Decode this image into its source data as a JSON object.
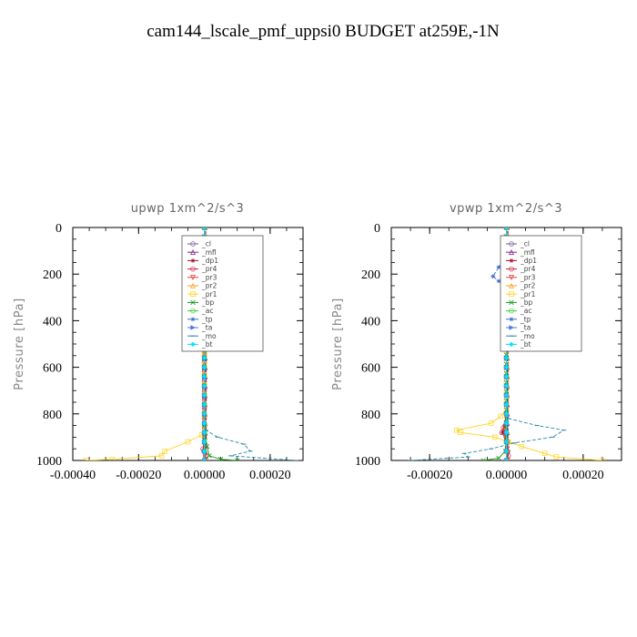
{
  "title": "cam144_lscale_pmf_uppsi0  BUDGET at259E,-1N",
  "chart_data": [
    {
      "type": "line",
      "subtitle": "upwp   1xm^2/s^3",
      "ylabel": "Pressure [hPa]",
      "xlim": [
        -0.0004,
        0.0003
      ],
      "ylim": [
        1000,
        0
      ],
      "x_ticks": [
        -0.0004,
        -0.0002,
        0.0,
        0.0002
      ],
      "x_tick_labels": [
        "-0.00040",
        "-0.00020",
        "0.00000",
        "0.00020"
      ],
      "y_ticks": [
        0,
        200,
        400,
        600,
        800,
        1000
      ],
      "y_tick_labels": [
        "0",
        "200",
        "400",
        "600",
        "800",
        "1000"
      ],
      "legend_position": "top-right",
      "series": [
        {
          "name": "_cl",
          "color": "#7a5c9e",
          "marker": "circle",
          "points": [
            [
              0,
              0
            ],
            [
              0,
              200
            ],
            [
              0,
              400
            ],
            [
              0,
              600
            ],
            [
              0,
              800
            ],
            [
              0,
              1000
            ]
          ]
        },
        {
          "name": "_mfl",
          "color": "#8b1a8b",
          "marker": "triangle",
          "points": [
            [
              2e-06,
              0
            ],
            [
              2e-06,
              200
            ],
            [
              2e-06,
              400
            ],
            [
              2e-06,
              600
            ],
            [
              2e-06,
              800
            ],
            [
              2e-06,
              1000
            ]
          ]
        },
        {
          "name": "_dp1",
          "color": "#a01030",
          "marker": "star",
          "points": [
            [
              0,
              0
            ],
            [
              0,
              300
            ],
            [
              0,
              600
            ],
            [
              0,
              900
            ],
            [
              -3e-06,
              960
            ],
            [
              2e-06,
              1000
            ]
          ]
        },
        {
          "name": "_pr4",
          "color": "#cc2244",
          "marker": "circle",
          "points": [
            [
              0,
              0
            ],
            [
              0,
              500
            ],
            [
              0,
              900
            ],
            [
              -4e-06,
              950
            ],
            [
              3e-06,
              980
            ],
            [
              0,
              1000
            ]
          ]
        },
        {
          "name": "_pr3",
          "color": "#e03c3c",
          "marker": "triangle-down",
          "points": [
            [
              0,
              0
            ],
            [
              0,
              500
            ],
            [
              1e-06,
              900
            ],
            [
              4e-06,
              1000
            ]
          ]
        },
        {
          "name": "_pr2",
          "color": "#ff9a1a",
          "marker": "triangle",
          "points": [
            [
              0,
              0
            ],
            [
              5e-06,
              100
            ],
            [
              1.2e-05,
              200
            ],
            [
              6e-06,
              300
            ],
            [
              0,
              500
            ],
            [
              0,
              1000
            ]
          ]
        },
        {
          "name": "_pr1",
          "color": "#ffd21a",
          "marker": "square",
          "points": [
            [
              0,
              0
            ],
            [
              8e-06,
              100
            ],
            [
              1.5e-05,
              180
            ],
            [
              2e-05,
              220
            ],
            [
              1.2e-05,
              300
            ],
            [
              8e-06,
              400
            ],
            [
              0,
              500
            ],
            [
              0,
              850
            ],
            [
              -8e-06,
              890
            ],
            [
              -5e-05,
              920
            ],
            [
              -0.00012,
              960
            ],
            [
              -0.00013,
              980
            ],
            [
              -0.00028,
              995
            ],
            [
              -0.00036,
              1000
            ]
          ]
        },
        {
          "name": "_bp",
          "color": "#1a9a1a",
          "marker": "x",
          "points": [
            [
              0,
              0
            ],
            [
              0,
              800
            ],
            [
              2e-06,
              900
            ],
            [
              1.5e-05,
              980
            ],
            [
              5e-05,
              995
            ],
            [
              0.0001,
              1000
            ]
          ]
        },
        {
          "name": "_ac",
          "color": "#33cc33",
          "marker": "circle",
          "points": [
            [
              0,
              0
            ],
            [
              0,
              1000
            ]
          ]
        },
        {
          "name": "_tp",
          "color": "#3a66cc",
          "marker": "star",
          "points": [
            [
              0,
              0
            ],
            [
              5e-06,
              100
            ],
            [
              -3e-05,
              200
            ],
            [
              -4e-05,
              300
            ],
            [
              -2e-05,
              400
            ],
            [
              0,
              450
            ],
            [
              0,
              1000
            ]
          ]
        },
        {
          "name": "_ta",
          "color": "#4a7adc",
          "marker": "triangle-right",
          "points": [
            [
              0,
              0
            ],
            [
              0,
              1000
            ]
          ]
        },
        {
          "name": "_mo",
          "color": "#2a8aaa",
          "marker": "dash",
          "points": [
            [
              0,
              0
            ],
            [
              0,
              850
            ],
            [
              5e-06,
              870
            ],
            [
              4e-05,
              900
            ],
            [
              0.00012,
              930
            ],
            [
              0.00014,
              960
            ],
            [
              8e-05,
              980
            ],
            [
              0.00028,
              1000
            ]
          ]
        },
        {
          "name": "_bt",
          "color": "#00e0ff",
          "marker": "diamond",
          "points": [
            [
              0,
              0
            ],
            [
              0,
              1000
            ]
          ]
        }
      ]
    },
    {
      "type": "line",
      "subtitle": "vpwp   1xm^2/s^3",
      "ylabel": "Pressure [hPa]",
      "xlim": [
        -0.0003,
        0.0003
      ],
      "ylim": [
        1000,
        0
      ],
      "x_ticks": [
        -0.0002,
        0.0,
        0.0002
      ],
      "x_tick_labels": [
        "-0.00020",
        "0.00000",
        "0.00020"
      ],
      "y_ticks": [
        0,
        200,
        400,
        600,
        800,
        1000
      ],
      "y_tick_labels": [
        "0",
        "200",
        "400",
        "600",
        "800",
        "1000"
      ],
      "legend_position": "top-right",
      "series": [
        {
          "name": "_cl",
          "color": "#7a5c9e",
          "marker": "circle",
          "points": [
            [
              0,
              0
            ],
            [
              0,
              200
            ],
            [
              0,
              400
            ],
            [
              0,
              600
            ],
            [
              0,
              800
            ],
            [
              0,
              1000
            ]
          ]
        },
        {
          "name": "_mfl",
          "color": "#8b1a8b",
          "marker": "triangle",
          "points": [
            [
              2e-06,
              0
            ],
            [
              2e-06,
              200
            ],
            [
              2e-06,
              400
            ],
            [
              2e-06,
              600
            ],
            [
              2e-06,
              800
            ],
            [
              2e-06,
              1000
            ]
          ]
        },
        {
          "name": "_dp1",
          "color": "#a01030",
          "marker": "star",
          "points": [
            [
              0,
              0
            ],
            [
              0,
              300
            ],
            [
              0,
              600
            ],
            [
              0,
              800
            ],
            [
              -5e-06,
              850
            ],
            [
              -1e-05,
              880
            ],
            [
              0,
              920
            ],
            [
              5e-06,
              960
            ],
            [
              0,
              1000
            ]
          ]
        },
        {
          "name": "_pr4",
          "color": "#cc2244",
          "marker": "circle",
          "points": [
            [
              0,
              0
            ],
            [
              0,
              800
            ],
            [
              -8e-06,
              860
            ],
            [
              -1.2e-05,
              880
            ],
            [
              3e-06,
              920
            ],
            [
              5e-06,
              980
            ],
            [
              0,
              1000
            ]
          ]
        },
        {
          "name": "_pr3",
          "color": "#e03c3c",
          "marker": "triangle-down",
          "points": [
            [
              0,
              0
            ],
            [
              0,
              800
            ],
            [
              -4e-06,
              870
            ],
            [
              2e-06,
              950
            ],
            [
              3e-06,
              1000
            ]
          ]
        },
        {
          "name": "_pr2",
          "color": "#ff9a1a",
          "marker": "triangle",
          "points": [
            [
              0,
              0
            ],
            [
              5e-06,
              150
            ],
            [
              8e-06,
              200
            ],
            [
              4e-06,
              250
            ],
            [
              0,
              300
            ],
            [
              0,
              1000
            ]
          ]
        },
        {
          "name": "_pr1",
          "color": "#ffd21a",
          "marker": "square",
          "points": [
            [
              0,
              0
            ],
            [
              5e-06,
              120
            ],
            [
              1.5e-05,
              170
            ],
            [
              2e-05,
              200
            ],
            [
              1.2e-05,
              240
            ],
            [
              4e-06,
              280
            ],
            [
              0,
              320
            ],
            [
              0,
              780
            ],
            [
              -1.5e-05,
              810
            ],
            [
              -4e-05,
              840
            ],
            [
              -0.00013,
              870
            ],
            [
              -0.00012,
              880
            ],
            [
              -3e-05,
              900
            ],
            [
              5e-06,
              920
            ],
            [
              4e-05,
              940
            ],
            [
              0.0001,
              970
            ],
            [
              0.00013,
              985
            ],
            [
              0.00025,
              1000
            ]
          ]
        },
        {
          "name": "_bp",
          "color": "#1a9a1a",
          "marker": "x",
          "points": [
            [
              0,
              0
            ],
            [
              0,
              900
            ],
            [
              -3e-06,
              960
            ],
            [
              -2e-05,
              990
            ],
            [
              -6e-05,
              1000
            ]
          ]
        },
        {
          "name": "_ac",
          "color": "#33cc33",
          "marker": "circle",
          "points": [
            [
              0,
              0
            ],
            [
              0,
              1000
            ]
          ]
        },
        {
          "name": "_tp",
          "color": "#3a66cc",
          "marker": "star",
          "points": [
            [
              0,
              0
            ],
            [
              3e-06,
              130
            ],
            [
              -2e-05,
              170
            ],
            [
              -3.5e-05,
              210
            ],
            [
              -2e-05,
              230
            ],
            [
              0,
              250
            ],
            [
              0,
              1000
            ]
          ]
        },
        {
          "name": "_ta",
          "color": "#4a7adc",
          "marker": "triangle-right",
          "points": [
            [
              0,
              0
            ],
            [
              0,
              1000
            ]
          ]
        },
        {
          "name": "_mo",
          "color": "#2a8aaa",
          "marker": "dash",
          "points": [
            [
              0,
              0
            ],
            [
              0,
              790
            ],
            [
              5e-06,
              820
            ],
            [
              8e-05,
              850
            ],
            [
              0.00015,
              870
            ],
            [
              0.00012,
              900
            ],
            [
              2e-05,
              925
            ],
            [
              -4e-05,
              950
            ],
            [
              -0.00011,
              970
            ],
            [
              -0.0001,
              985
            ],
            [
              -0.00025,
              1000
            ]
          ]
        },
        {
          "name": "_bt",
          "color": "#00e0ff",
          "marker": "diamond",
          "points": [
            [
              0,
              0
            ],
            [
              0,
              1000
            ]
          ]
        }
      ]
    }
  ]
}
